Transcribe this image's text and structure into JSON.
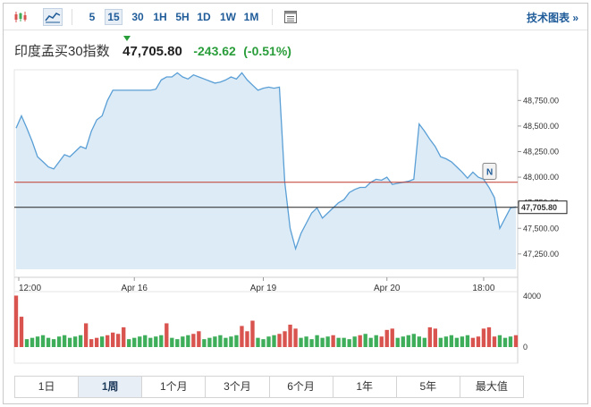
{
  "toolbar": {
    "timeframes": [
      "5",
      "15",
      "30",
      "1H",
      "5H",
      "1D",
      "1W",
      "1M"
    ],
    "selected_timeframe": "15",
    "tech_chart_link": "技术图表 »"
  },
  "instrument": {
    "name": "印度孟买30指数",
    "price": "47,705.80",
    "change": "-243.62",
    "change_pct": "(-0.51%)"
  },
  "colors": {
    "line": "#5a9fd6",
    "area": "#dcebf6",
    "up_volume": "#3fae5a",
    "down_volume": "#d9534f",
    "reference_line": "#c0392b",
    "accent": "#1f5c99",
    "change": "#2a9d3b"
  },
  "chart_data": {
    "type": "line",
    "title": "印度孟买30指数",
    "ylim": [
      47100,
      49050
    ],
    "yticks": [
      47250,
      47500,
      47750,
      48000,
      48250,
      48500,
      48750
    ],
    "ytick_labels": [
      "47,250.00",
      "47,500.00",
      "47,750.00",
      "48,000.00",
      "48,250.00",
      "48,500.00",
      "48,750.00"
    ],
    "xtick_labels": [
      "12:00",
      "Apr 16",
      "Apr 19",
      "Apr 20",
      "18:00"
    ],
    "xtick_positions": [
      0.5,
      22,
      46,
      69,
      87
    ],
    "last_price": 47705.8,
    "last_price_label": "47,705.80",
    "reference_price": 47950,
    "series": [
      {
        "values": [
          48480,
          48600,
          48480,
          48350,
          48200,
          48150,
          48100,
          48080,
          48150,
          48220,
          48200,
          48250,
          48300,
          48280,
          48450,
          48560,
          48600,
          48750,
          48850,
          48850,
          48850,
          48850,
          48850,
          48850,
          48850,
          48850,
          48860,
          48950,
          48980,
          48980,
          49020,
          48980,
          48960,
          49000,
          48980,
          48960,
          48940,
          48920,
          48930,
          48950,
          48980,
          48960,
          49020,
          48950,
          48900,
          48850,
          48870,
          48880,
          48870,
          48880,
          47950,
          47500,
          47300,
          47450,
          47550,
          47650,
          47700,
          47600,
          47650,
          47700,
          47750,
          47780,
          47850,
          47880,
          47900,
          47900,
          47950,
          47980,
          47970,
          48000,
          47930,
          47940,
          47950,
          47960,
          47980,
          48520,
          48450,
          48370,
          48300,
          48200,
          48180,
          48150,
          48100,
          48050,
          47990,
          48050,
          48000,
          47980,
          47900,
          47800,
          47500,
          47600,
          47700,
          47710
        ]
      }
    ],
    "volume": {
      "ylim": [
        0,
        4000
      ],
      "ytick_labels": [
        "4000",
        "0"
      ],
      "values": [
        3900,
        2300,
        600,
        700,
        800,
        900,
        700,
        600,
        800,
        900,
        700,
        800,
        900,
        1800,
        600,
        700,
        800,
        900,
        1100,
        1000,
        1500,
        600,
        700,
        800,
        900,
        700,
        800,
        900,
        1800,
        700,
        600,
        800,
        900,
        1000,
        1200,
        600,
        700,
        800,
        900,
        700,
        800,
        900,
        1600,
        1200,
        2000,
        700,
        600,
        800,
        900,
        1000,
        1200,
        1700,
        1400,
        700,
        800,
        600,
        900,
        700,
        800,
        900,
        700,
        700,
        600,
        800,
        900,
        1000,
        700,
        900,
        800,
        1300,
        1400,
        700,
        800,
        900,
        1000,
        800,
        700,
        1500,
        1400,
        700,
        800,
        900,
        700,
        800,
        900,
        700,
        800,
        1400,
        1500,
        800,
        900,
        700,
        800,
        900
      ],
      "down": [
        0,
        1,
        13,
        14,
        15,
        17,
        18,
        19,
        20,
        28,
        33,
        34,
        42,
        43,
        44,
        49,
        50,
        51,
        52,
        59,
        64,
        68,
        69,
        70,
        77,
        78,
        85,
        86,
        87,
        88,
        89,
        93
      ]
    }
  },
  "ranges": [
    "1日",
    "1周",
    "1个月",
    "3个月",
    "6个月",
    "1年",
    "5年",
    "最大值"
  ],
  "selected_range": "1周"
}
